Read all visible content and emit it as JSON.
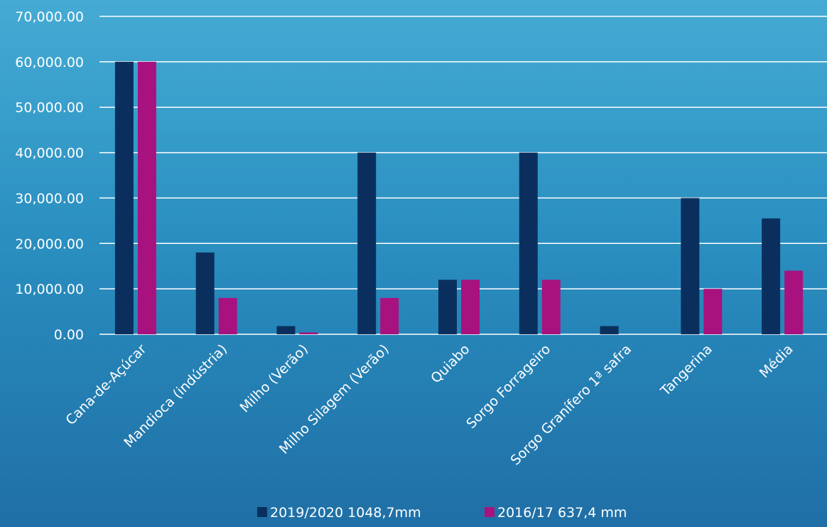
{
  "chart_data": {
    "type": "bar",
    "categories": [
      "Cana-de-Açúcar",
      "Mandioca (indústria)",
      "Milho (Verão)",
      "Milho Silagem (Verão)",
      "Quiabo",
      "Sorgo Forrageiro",
      "Sorgo Granífero 1ª safra",
      "Tangerina",
      "Média"
    ],
    "series": [
      {
        "name": "2019/2020 1048,7mm",
        "color": "#0a2f5e",
        "values": [
          60000,
          18000,
          1800,
          40000,
          12000,
          40000,
          1800,
          30000,
          25500
        ]
      },
      {
        "name": "2016/17 637,4 mm",
        "color": "#a8127f",
        "values": [
          60000,
          8000,
          400,
          8000,
          12000,
          12000,
          0,
          10000,
          14000
        ]
      }
    ],
    "ylim": [
      0,
      70000
    ],
    "yticks": [
      "0.00",
      "10,000.00",
      "20,000.00",
      "30,000.00",
      "40,000.00",
      "50,000.00",
      "60,000.00",
      "70,000.00"
    ],
    "grid": true,
    "legend_position": "bottom",
    "title": "",
    "xlabel": "",
    "ylabel": ""
  }
}
